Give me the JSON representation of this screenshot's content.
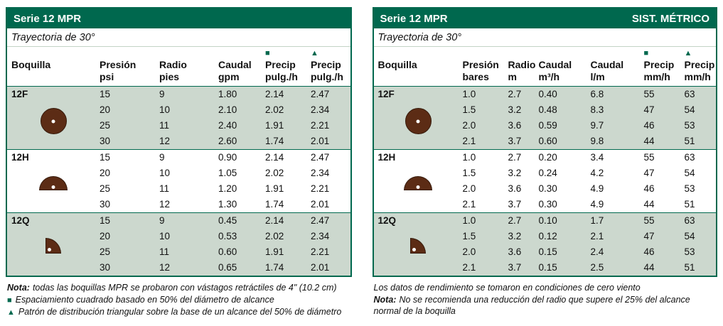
{
  "colors": {
    "header_green": "#00684e",
    "row_shade": "#ccd8ce",
    "nozzle_brown": "#5c2c15"
  },
  "left_table": {
    "title": "Serie 12 MPR",
    "subtitle": "Trayectoria de 30°",
    "columns": [
      {
        "label": "Boquilla",
        "unit": "",
        "symbol": ""
      },
      {
        "label": "Presión",
        "unit": "psi",
        "symbol": ""
      },
      {
        "label": "Radio",
        "unit": "pies",
        "symbol": ""
      },
      {
        "label": "Caudal",
        "unit": "gpm",
        "symbol": ""
      },
      {
        "label": "Precip",
        "unit": "pulg./h",
        "symbol": "square"
      },
      {
        "label": "Precip",
        "unit": "pulg./h",
        "symbol": "triangle"
      }
    ],
    "groups": [
      {
        "nozzle": "12F",
        "icon": "full-circle",
        "rows": [
          [
            "15",
            "9",
            "1.80",
            "2.14",
            "2.47"
          ],
          [
            "20",
            "10",
            "2.10",
            "2.02",
            "2.34"
          ],
          [
            "25",
            "11",
            "2.40",
            "1.91",
            "2.21"
          ],
          [
            "30",
            "12",
            "2.60",
            "1.74",
            "2.01"
          ]
        ]
      },
      {
        "nozzle": "12H",
        "icon": "half-circle",
        "rows": [
          [
            "15",
            "9",
            "0.90",
            "2.14",
            "2.47"
          ],
          [
            "20",
            "10",
            "1.05",
            "2.02",
            "2.34"
          ],
          [
            "25",
            "11",
            "1.20",
            "1.91",
            "2.21"
          ],
          [
            "30",
            "12",
            "1.30",
            "1.74",
            "2.01"
          ]
        ]
      },
      {
        "nozzle": "12Q",
        "icon": "quarter-circle",
        "rows": [
          [
            "15",
            "9",
            "0.45",
            "2.14",
            "2.47"
          ],
          [
            "20",
            "10",
            "0.53",
            "2.02",
            "2.34"
          ],
          [
            "25",
            "11",
            "0.60",
            "1.91",
            "2.21"
          ],
          [
            "30",
            "12",
            "0.65",
            "1.74",
            "2.01"
          ]
        ]
      }
    ],
    "notes": [
      {
        "marker": "",
        "prefix": "Nota:",
        "text": "todas las boquillas MPR se probaron con vástagos retráctiles de 4\" (10.2 cm)"
      },
      {
        "marker": "square",
        "prefix": "",
        "text": "Espaciamiento cuadrado basado en 50% del diámetro de alcance"
      },
      {
        "marker": "triangle",
        "prefix": "",
        "text": "Patrón de distribución triangular sobre la base de un alcance del 50% de diámetro"
      }
    ]
  },
  "right_table": {
    "title": "Serie 12 MPR",
    "badge": "SIST. MÉTRICO",
    "subtitle": "Trayectoria de 30°",
    "columns": [
      {
        "label": "Boquilla",
        "unit": "",
        "symbol": ""
      },
      {
        "label": "Presión",
        "unit": "bares",
        "symbol": ""
      },
      {
        "label": "Radio",
        "unit": "m",
        "symbol": ""
      },
      {
        "label": "Caudal",
        "unit": "m³/h",
        "symbol": ""
      },
      {
        "label": "Caudal",
        "unit": "l/m",
        "symbol": ""
      },
      {
        "label": "Precip",
        "unit": "mm/h",
        "symbol": "square"
      },
      {
        "label": "Precip",
        "unit": "mm/h",
        "symbol": "triangle"
      }
    ],
    "groups": [
      {
        "nozzle": "12F",
        "icon": "full-circle",
        "rows": [
          [
            "1.0",
            "2.7",
            "0.40",
            "6.8",
            "55",
            "63"
          ],
          [
            "1.5",
            "3.2",
            "0.48",
            "8.3",
            "47",
            "54"
          ],
          [
            "2.0",
            "3.6",
            "0.59",
            "9.7",
            "46",
            "53"
          ],
          [
            "2.1",
            "3.7",
            "0.60",
            "9.8",
            "44",
            "51"
          ]
        ]
      },
      {
        "nozzle": "12H",
        "icon": "half-circle",
        "rows": [
          [
            "1.0",
            "2.7",
            "0.20",
            "3.4",
            "55",
            "63"
          ],
          [
            "1.5",
            "3.2",
            "0.24",
            "4.2",
            "47",
            "54"
          ],
          [
            "2.0",
            "3.6",
            "0.30",
            "4.9",
            "46",
            "53"
          ],
          [
            "2.1",
            "3.7",
            "0.30",
            "4.9",
            "44",
            "51"
          ]
        ]
      },
      {
        "nozzle": "12Q",
        "icon": "quarter-circle",
        "rows": [
          [
            "1.0",
            "2.7",
            "0.10",
            "1.7",
            "55",
            "63"
          ],
          [
            "1.5",
            "3.2",
            "0.12",
            "2.1",
            "47",
            "54"
          ],
          [
            "2.0",
            "3.6",
            "0.15",
            "2.4",
            "46",
            "53"
          ],
          [
            "2.1",
            "3.7",
            "0.15",
            "2.5",
            "44",
            "51"
          ]
        ]
      }
    ],
    "notes": [
      {
        "marker": "",
        "prefix": "",
        "text": "Los datos de rendimiento se tomaron en condiciones de cero viento"
      },
      {
        "marker": "",
        "prefix": "Nota:",
        "text": "No se recomienda una reducción del radio que supere el 25% del alcance normal de la boquilla"
      }
    ]
  }
}
